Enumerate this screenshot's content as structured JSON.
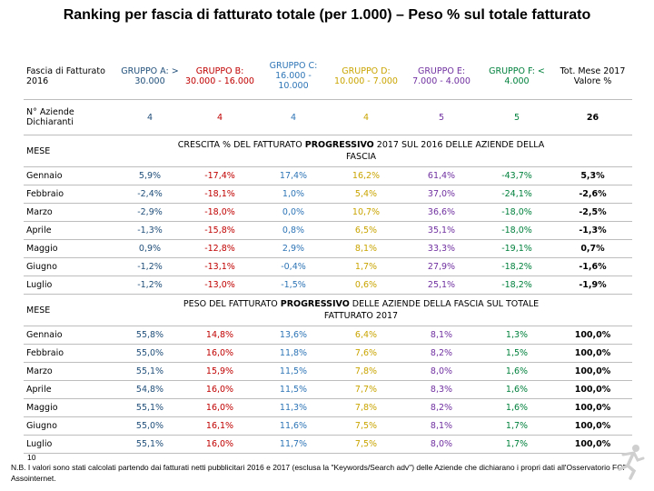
{
  "title": "Ranking per fascia di fatturato totale (per 1.000) – Peso % sul totale fatturato",
  "header": {
    "label": "Fascia di Fatturato 2016",
    "groups": [
      "GRUPPO A: > 30.000",
      "GRUPPO B: 30.000 - 16.000",
      "GRUPPO C: 16.000 - 10.000",
      "GRUPPO D: 10.000 - 7.000",
      "GRUPPO E: 7.000 - 4.000",
      "GRUPPO F: < 4.000",
      "Tot. Mese 2017 Valore %"
    ]
  },
  "counts": {
    "label": "N° Aziende Dichiaranti",
    "values": [
      "4",
      "4",
      "4",
      "4",
      "5",
      "5",
      "26"
    ]
  },
  "section1": {
    "label": "MESE",
    "text_pre": "CRESCITA % DEL FATTURATO ",
    "text_bold": "PROGRESSIVO",
    "text_post": " 2017 SUL 2016 DELLE AZIENDE DELLA FASCIA",
    "rows": [
      {
        "month": "Gennaio",
        "values": [
          "5,9%",
          "-17,4%",
          "17,4%",
          "16,2%",
          "61,4%",
          "-43,7%",
          "5,3%"
        ]
      },
      {
        "month": "Febbraio",
        "values": [
          "-2,4%",
          "-18,1%",
          "1,0%",
          "5,4%",
          "37,0%",
          "-24,1%",
          "-2,6%"
        ]
      },
      {
        "month": "Marzo",
        "values": [
          "-2,9%",
          "-18,0%",
          "0,0%",
          "10,7%",
          "36,6%",
          "-18,0%",
          "-2,5%"
        ]
      },
      {
        "month": "Aprile",
        "values": [
          "-1,3%",
          "-15,8%",
          "0,8%",
          "6,5%",
          "35,1%",
          "-18,0%",
          "-1,3%"
        ]
      },
      {
        "month": "Maggio",
        "values": [
          "0,9%",
          "-12,8%",
          "2,9%",
          "8,1%",
          "33,3%",
          "-19,1%",
          "0,7%"
        ]
      },
      {
        "month": "Giugno",
        "values": [
          "-1,2%",
          "-13,1%",
          "-0,4%",
          "1,7%",
          "27,9%",
          "-18,2%",
          "-1,6%"
        ]
      },
      {
        "month": "Luglio",
        "values": [
          "-1,2%",
          "-13,0%",
          "-1,5%",
          "0,6%",
          "25,1%",
          "-18,2%",
          "-1,9%"
        ]
      }
    ]
  },
  "section2": {
    "label": "MESE",
    "text_pre": "PESO DEL FATTURATO ",
    "text_bold": "PROGRESSIVO",
    "text_post": " DELLE AZIENDE DELLA FASCIA SUL TOTALE FATTURATO 2017",
    "rows": [
      {
        "month": "Gennaio",
        "values": [
          "55,8%",
          "14,8%",
          "13,6%",
          "6,4%",
          "8,1%",
          "1,3%",
          "100,0%"
        ]
      },
      {
        "month": "Febbraio",
        "values": [
          "55,0%",
          "16,0%",
          "11,8%",
          "7,6%",
          "8,2%",
          "1,5%",
          "100,0%"
        ]
      },
      {
        "month": "Marzo",
        "values": [
          "55,1%",
          "15,9%",
          "11,5%",
          "7,8%",
          "8,0%",
          "1,6%",
          "100,0%"
        ]
      },
      {
        "month": "Aprile",
        "values": [
          "54,8%",
          "16,0%",
          "11,5%",
          "7,7%",
          "8,3%",
          "1,6%",
          "100,0%"
        ]
      },
      {
        "month": "Maggio",
        "values": [
          "55,1%",
          "16,0%",
          "11,3%",
          "7,8%",
          "8,2%",
          "1,6%",
          "100,0%"
        ]
      },
      {
        "month": "Giugno",
        "values": [
          "55,0%",
          "16,1%",
          "11,6%",
          "7,5%",
          "8,1%",
          "1,7%",
          "100,0%"
        ]
      },
      {
        "month": "Luglio",
        "values": [
          "55,1%",
          "16,0%",
          "11,7%",
          "7,5%",
          "8,0%",
          "1,7%",
          "100,0%"
        ]
      }
    ]
  },
  "footer": {
    "page_number": "10",
    "note": "N.B. I valori sono stati calcolati partendo dai fatturati netti pubblicitari 2016 e 2017 (esclusa la \"Keywords/Search adv\") delle Aziende che dichiarano i propri dati all'Osservatorio FCP Assointernet."
  },
  "colors": {
    "group_a": "#1f4e79",
    "group_b": "#c00000",
    "group_c": "#2e75b6",
    "group_d": "#c9a400",
    "group_e": "#7030a0",
    "group_f": "#00803c"
  },
  "logo_icon": "running-figure-icon"
}
